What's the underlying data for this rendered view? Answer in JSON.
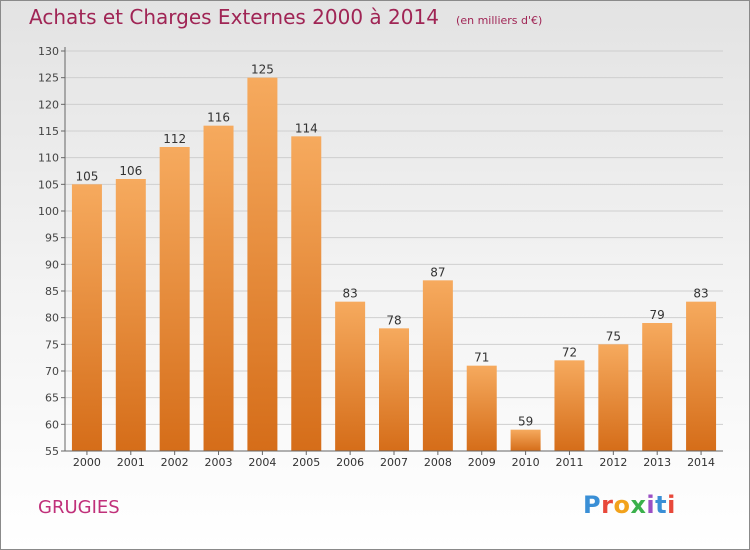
{
  "header": {
    "title": "Achats et Charges Externes 2000 à 2014",
    "unit_note": "(en milliers d'€)"
  },
  "footer": {
    "commune": "GRUGIES",
    "logo_text": "Proxiti",
    "logo_colors": [
      "#3a8fd6",
      "#e8483a",
      "#f2a21c",
      "#3ab04b",
      "#9b4fc4",
      "#3a8fd6",
      "#e8483a"
    ]
  },
  "colors": {
    "bar_light": "#f6aa5e",
    "bar_dark": "#d56d19",
    "title": "#a02555",
    "axis": "#666666",
    "grid": "#cfcfcf"
  },
  "chart_data": {
    "type": "bar",
    "title": "Achats et Charges Externes 2000 à 2014",
    "xlabel": "",
    "ylabel": "",
    "categories": [
      "2000",
      "2001",
      "2002",
      "2003",
      "2004",
      "2005",
      "2006",
      "2007",
      "2008",
      "2009",
      "2010",
      "2011",
      "2012",
      "2013",
      "2014"
    ],
    "values": [
      105,
      106,
      112,
      116,
      125,
      114,
      83,
      78,
      87,
      71,
      59,
      72,
      75,
      79,
      83
    ],
    "ylim": [
      55,
      130
    ],
    "yticks": [
      55,
      60,
      65,
      70,
      75,
      80,
      85,
      90,
      95,
      100,
      105,
      110,
      115,
      120,
      125,
      130
    ],
    "grid": true,
    "data_labels": true
  }
}
